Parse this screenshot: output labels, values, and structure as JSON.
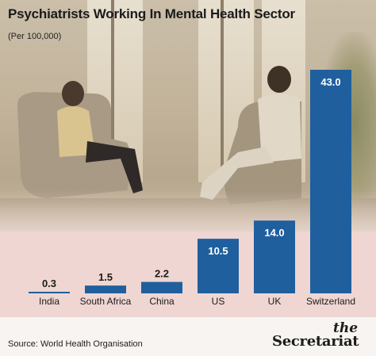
{
  "header": {
    "title": "Psychiatrists Working In Mental Health Sector",
    "subtitle": "(Per 100,000)"
  },
  "footer": {
    "source": "Source: World Health Organisation",
    "brand_the": "the",
    "brand_name": "Secretariat"
  },
  "colors": {
    "bar": "#1f5f9e",
    "label": "#1b1b1b",
    "inside_label": "#ffffff",
    "band": "#efd6d2"
  },
  "chart_data": {
    "type": "bar",
    "title": "Psychiatrists Working In Mental Health Sector",
    "subtitle": "(Per 100,000)",
    "categories": [
      "India",
      "South Africa",
      "China",
      "US",
      "UK",
      "Switzerland"
    ],
    "values": [
      0.3,
      1.5,
      2.2,
      10.5,
      14.0,
      43.0
    ],
    "value_labels": [
      "0.3",
      "1.5",
      "2.2",
      "10.5",
      "14.0",
      "43.0"
    ],
    "ylim": [
      0,
      43
    ],
    "grid": false,
    "legend": "none"
  }
}
